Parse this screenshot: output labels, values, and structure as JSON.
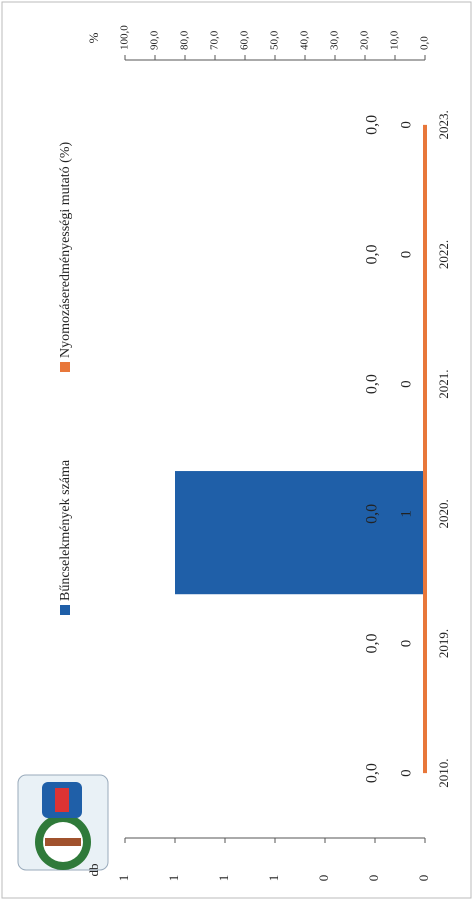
{
  "chart_data": {
    "type": "bar_line",
    "categories": [
      "2010.",
      "2019.",
      "2020.",
      "2021.",
      "2022.",
      "2023."
    ],
    "series": [
      {
        "name": "Bűncselekmények száma",
        "type": "bar",
        "color": "#1f5fa8",
        "values": [
          0,
          0,
          1,
          0,
          0,
          0
        ]
      },
      {
        "name": "Nyomozáseredményességi mutató (%)",
        "type": "line",
        "axis": "y2",
        "color": "#e8773a",
        "values": [
          0,
          0,
          0,
          0,
          0,
          0
        ],
        "value_labels": [
          "0,0",
          "0,0",
          "0,0",
          "0,0",
          "0,0",
          "0,0"
        ]
      }
    ],
    "ylabel": "db",
    "y2label": "%",
    "ylim": [
      0,
      1.2
    ],
    "yticks": [
      {
        "value": 0,
        "label": "0"
      },
      {
        "value": 0.2,
        "label": "0"
      },
      {
        "value": 0.4,
        "label": "0"
      },
      {
        "value": 0.6,
        "label": "1"
      },
      {
        "value": 0.8,
        "label": "1"
      },
      {
        "value": 1.0,
        "label": "1"
      },
      {
        "value": 1.2,
        "label": "1"
      }
    ],
    "y2lim": [
      0,
      100
    ],
    "y2ticks": [
      {
        "value": 0,
        "label": "0,0"
      },
      {
        "value": 10,
        "label": "10,0"
      },
      {
        "value": 20,
        "label": "20,0"
      },
      {
        "value": 30,
        "label": "30,0"
      },
      {
        "value": 40,
        "label": "40,0"
      },
      {
        "value": 50,
        "label": "50,0"
      },
      {
        "value": 60,
        "label": "60,0"
      },
      {
        "value": 70,
        "label": "70,0"
      },
      {
        "value": 80,
        "label": "80,0"
      },
      {
        "value": 90,
        "label": "90,0"
      },
      {
        "value": 100,
        "label": "100,0"
      }
    ]
  }
}
